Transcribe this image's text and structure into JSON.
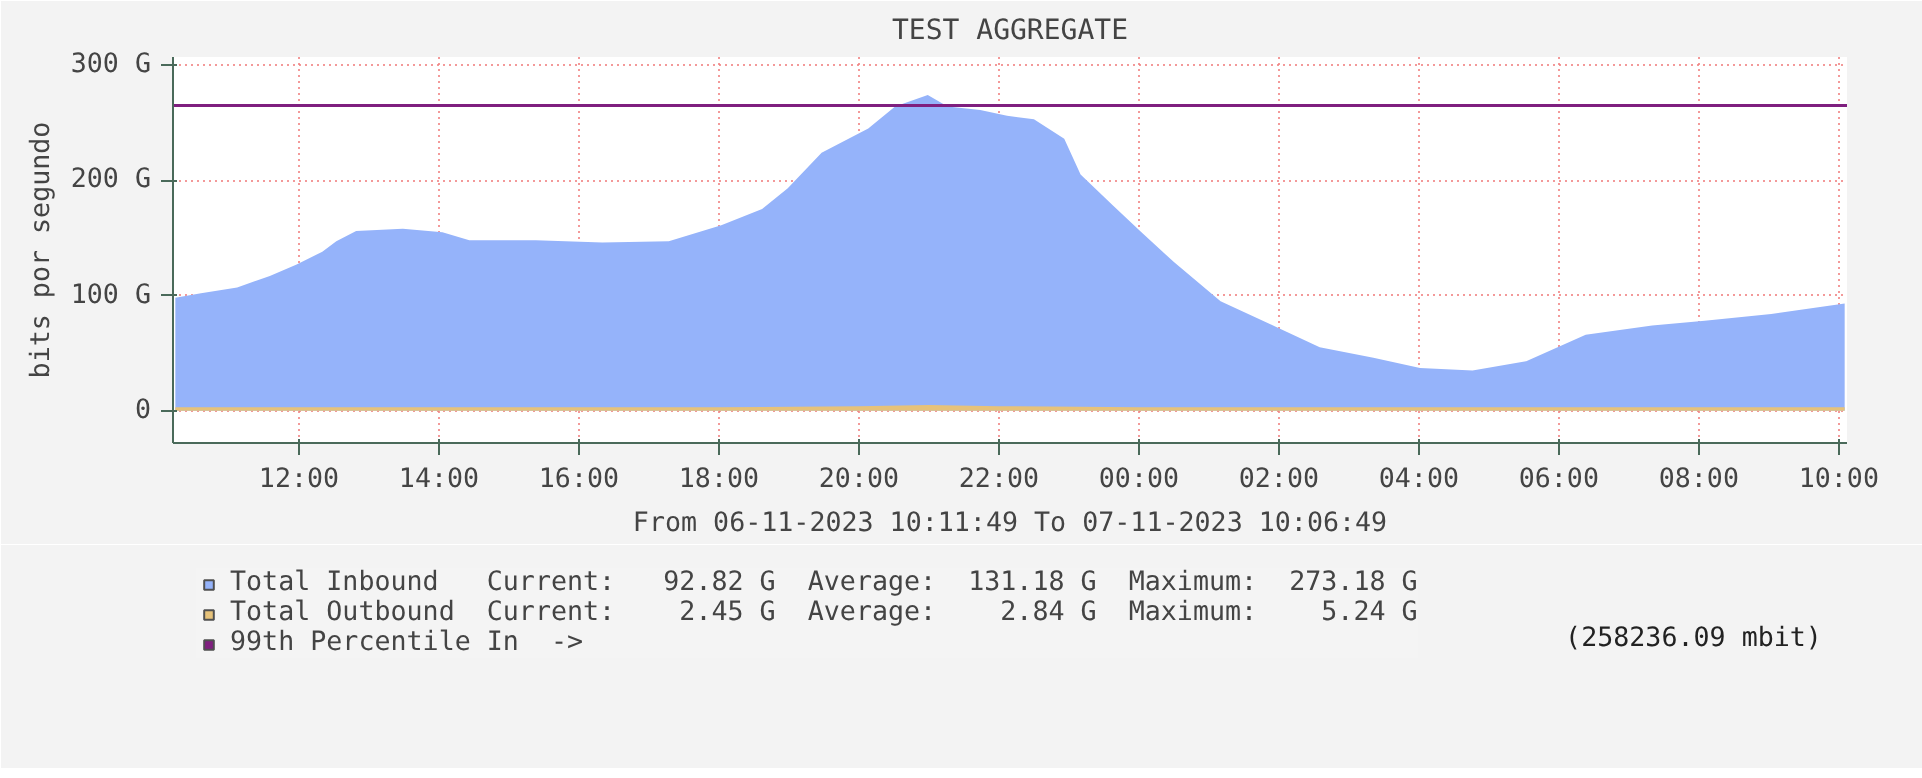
{
  "chart_data": {
    "type": "area",
    "title": "TEST AGGREGATE",
    "ylabel": "bits por segundo",
    "xlabel": "From 06-11-2023 10:11:49 To 07-11-2023 10:06:49",
    "series": [
      {
        "name": "Total Inbound",
        "color": "#95b3fa",
        "x": [
          "2023-11-06T10:14",
          "2023-11-06T10:36",
          "2023-11-06T11:07",
          "2023-11-06T11:35",
          "2023-11-06T11:58",
          "2023-11-06T12:20",
          "2023-11-06T12:32",
          "2023-11-06T12:49",
          "2023-11-06T13:29",
          "2023-11-06T14:03",
          "2023-11-06T14:26",
          "2023-11-06T15:23",
          "2023-11-06T16:20",
          "2023-11-06T17:17",
          "2023-11-06T18:02",
          "2023-11-06T18:37",
          "2023-11-06T18:59",
          "2023-11-06T19:28",
          "2023-11-06T20:08",
          "2023-11-06T20:31",
          "2023-11-06T20:59",
          "2023-11-06T21:16",
          "2023-11-06T21:44",
          "2023-11-06T22:07",
          "2023-11-06T22:30",
          "2023-11-06T22:56",
          "2023-11-06T23:10",
          "2023-11-06T23:38",
          "2023-11-07T00:01",
          "2023-11-07T00:30",
          "2023-11-07T01:10",
          "2023-11-07T01:55",
          "2023-11-07T02:35",
          "2023-11-07T03:21",
          "2023-11-07T04:01",
          "2023-11-07T04:46",
          "2023-11-07T05:32",
          "2023-11-07T06:23",
          "2023-11-07T07:20",
          "2023-11-07T08:05",
          "2023-11-07T09:02",
          "2023-11-07T10:05"
        ],
        "values": [
          98,
          102,
          107,
          117,
          127,
          138,
          147,
          156,
          158,
          155,
          148,
          148,
          146,
          147,
          161,
          175,
          193,
          224,
          245,
          264,
          274,
          264,
          261,
          256,
          253,
          236,
          205,
          178,
          156,
          129,
          95,
          74,
          55,
          46,
          37,
          35,
          43,
          66,
          74,
          78,
          84,
          93
        ]
      },
      {
        "name": "Total Outbound",
        "color": "#e6c27a",
        "x": [
          "2023-11-06T10:14",
          "2023-11-06T14:00",
          "2023-11-06T18:00",
          "2023-11-06T20:00",
          "2023-11-06T21:00",
          "2023-11-06T22:00",
          "2023-11-07T00:00",
          "2023-11-07T04:00",
          "2023-11-07T10:05"
        ],
        "values": [
          3,
          3,
          3,
          4,
          5,
          4,
          3,
          3,
          3
        ]
      }
    ],
    "annotations": [
      "Current:   92.82 G  Average:  131.18 G  Maximum:  273.18 G",
      "Current:    2.45 G  Average:    2.84 G  Maximum:    5.24 G",
      "(258236.09 mbit)"
    ],
    "ref_lines": [
      {
        "axis": "y",
        "value": 265,
        "label": "99th Percentile In  ->",
        "color": "#7f1f7f"
      }
    ],
    "xlim": [
      "2023-11-06T10:12",
      "2023-11-07T10:07"
    ],
    "ylim": [
      -28,
      307
    ],
    "xticks": [
      {
        "value": "2023-11-06T12:00",
        "label": "12:00"
      },
      {
        "value": "2023-11-06T14:00",
        "label": "14:00"
      },
      {
        "value": "2023-11-06T16:00",
        "label": "16:00"
      },
      {
        "value": "2023-11-06T18:00",
        "label": "18:00"
      },
      {
        "value": "2023-11-06T20:00",
        "label": "20:00"
      },
      {
        "value": "2023-11-06T22:00",
        "label": "22:00"
      },
      {
        "value": "2023-11-07T00:00",
        "label": "00:00"
      },
      {
        "value": "2023-11-07T02:00",
        "label": "02:00"
      },
      {
        "value": "2023-11-07T04:00",
        "label": "04:00"
      },
      {
        "value": "2023-11-07T06:00",
        "label": "06:00"
      },
      {
        "value": "2023-11-07T08:00",
        "label": "08:00"
      },
      {
        "value": "2023-11-07T10:00",
        "label": "10:00"
      }
    ],
    "yticks": [
      0,
      {
        "value": 100,
        "label": "100 G"
      },
      {
        "value": 200,
        "label": "200 G"
      },
      {
        "value": 300,
        "label": "300 G"
      }
    ],
    "grid": true,
    "legend": "bottom"
  }
}
